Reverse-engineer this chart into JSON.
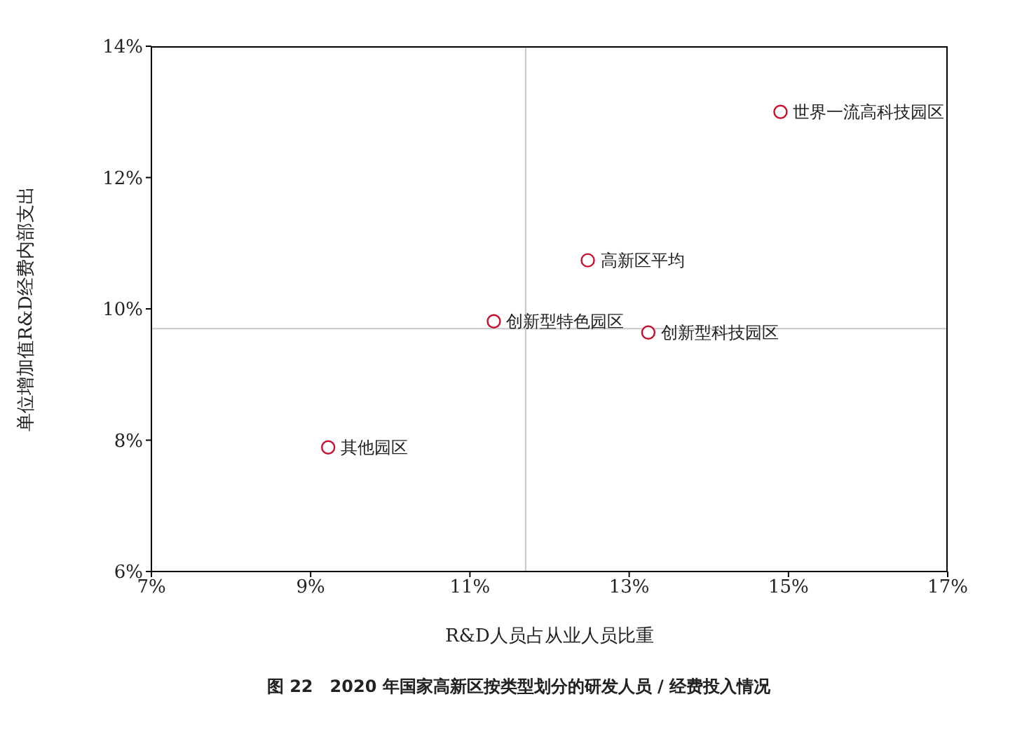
{
  "chart_data": {
    "type": "scatter",
    "title": "图 22　2020 年国家高新区按类型划分的研发人员 / 经费投入情况",
    "xlabel": "R&D人员占从业人员比重",
    "ylabel": "单位增加值R&D经费内部支出",
    "x": [
      14.9,
      12.48,
      11.3,
      13.24,
      9.22
    ],
    "series": [
      {
        "color": "#c8102e",
        "values": [
          13.0,
          10.74,
          9.81,
          9.64,
          7.89
        ]
      }
    ],
    "annotations": [
      {
        "text": "世界一流高科技园区",
        "x": 14.9,
        "y": 13.0
      },
      {
        "text": "高新区平均",
        "x": 12.48,
        "y": 10.74
      },
      {
        "text": "创新型特色园区",
        "x": 11.3,
        "y": 9.81
      },
      {
        "text": "创新型科技园区",
        "x": 13.24,
        "y": 9.64
      },
      {
        "text": "其他园区",
        "x": 9.22,
        "y": 7.89
      }
    ],
    "xlim": [
      7,
      17
    ],
    "xticks": [
      {
        "value": 7,
        "label": "7%"
      },
      {
        "value": 9,
        "label": "9%"
      },
      {
        "value": 11,
        "label": "11%"
      },
      {
        "value": 13,
        "label": "13%"
      },
      {
        "value": 15,
        "label": "15%"
      },
      {
        "value": 17,
        "label": "17%"
      }
    ],
    "ylim": [
      6,
      14
    ],
    "yticks": [
      {
        "value": 6,
        "label": "6%"
      },
      {
        "value": 8,
        "label": "8%"
      },
      {
        "value": 10,
        "label": "10%"
      },
      {
        "value": 12,
        "label": "12%"
      },
      {
        "value": 14,
        "label": "14%"
      }
    ],
    "ref_lines": [
      {
        "axis": "x",
        "value": 11.7,
        "color": "#c8c8c8"
      },
      {
        "axis": "y",
        "value": 9.7,
        "color": "#c8c8c8"
      }
    ],
    "marker": "circle",
    "grid": false,
    "legend": false
  }
}
